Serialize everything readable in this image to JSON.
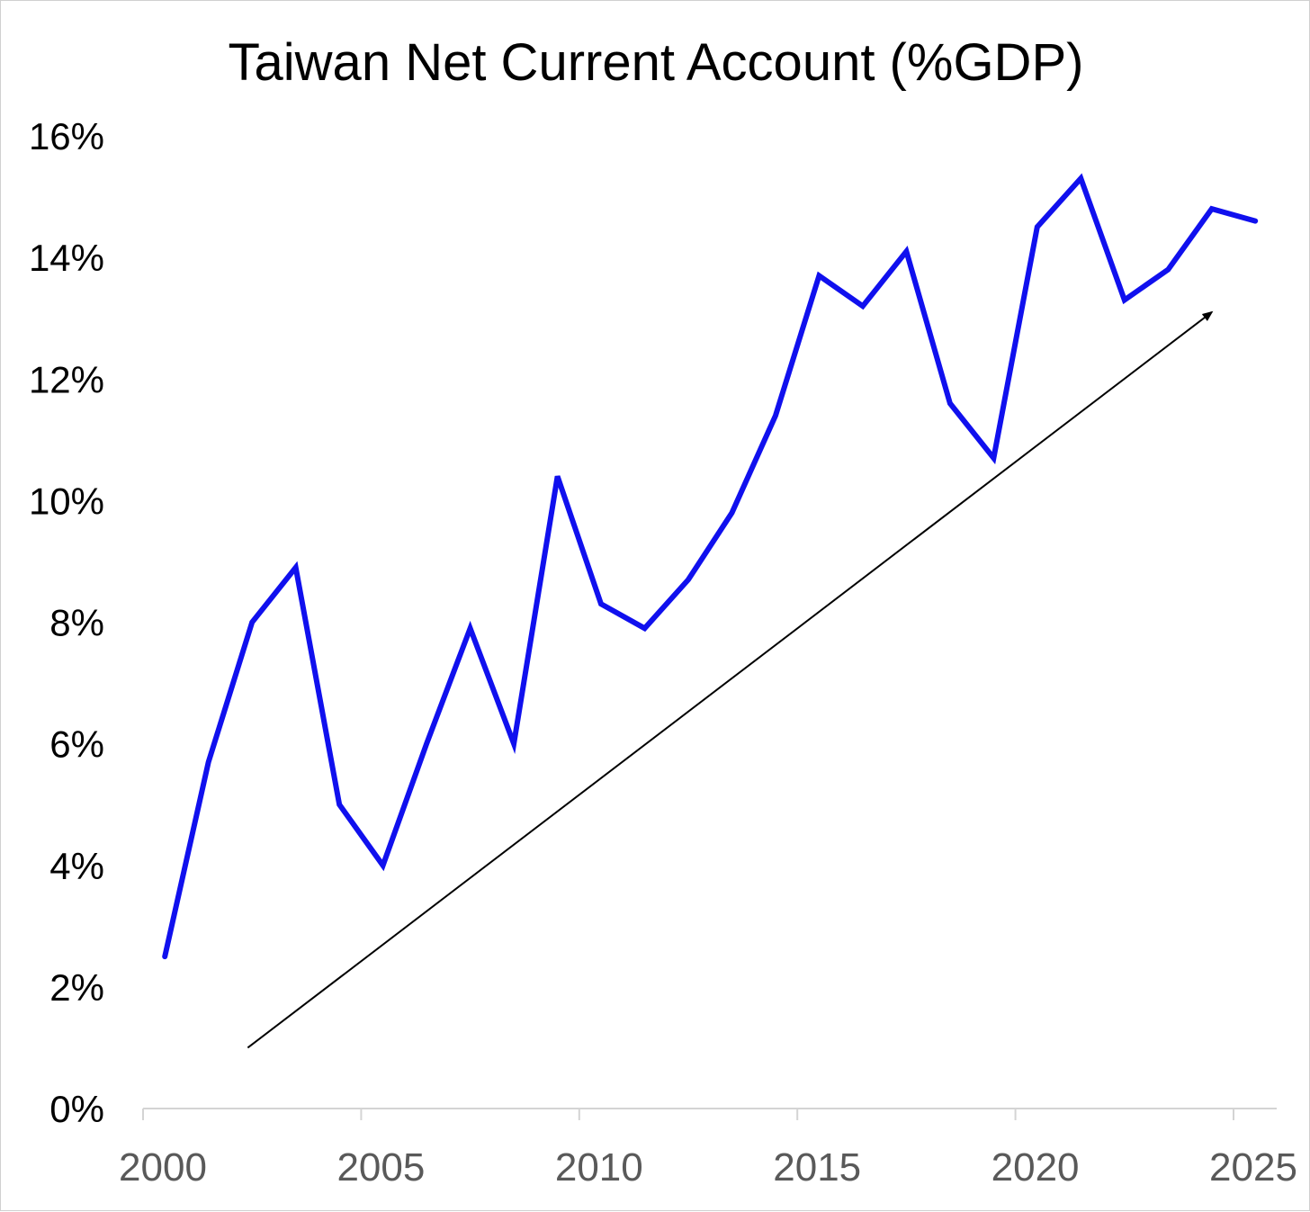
{
  "chart_data": {
    "type": "line",
    "title": "Taiwan Net Current Account (%GDP)",
    "xlabel": "",
    "ylabel": "",
    "xlim": [
      2000,
      2025
    ],
    "ylim": [
      0,
      16
    ],
    "x_ticks": [
      2000,
      2005,
      2010,
      2015,
      2020,
      2025
    ],
    "x_tick_labels": [
      "2000",
      "2005",
      "2010",
      "2015",
      "2020",
      "2025"
    ],
    "y_ticks": [
      0,
      2,
      4,
      6,
      8,
      10,
      12,
      14,
      16
    ],
    "y_tick_labels": [
      "0%",
      "2%",
      "4%",
      "6%",
      "8%",
      "10%",
      "12%",
      "14%",
      "16%"
    ],
    "grid": false,
    "legend": "none",
    "series": [
      {
        "color": "#1010ee",
        "x": [
          2000.5,
          2001.5,
          2002.5,
          2003.5,
          2004.5,
          2005.5,
          2006.5,
          2007.5,
          2008.5,
          2009.5,
          2010.5,
          2011.5,
          2012.5,
          2013.5,
          2014.5,
          2015.5,
          2016.5,
          2017.5,
          2018.5,
          2019.5,
          2020.5,
          2021.5,
          2022.5,
          2023.5,
          2024.5,
          2025.5
        ],
        "values": [
          2.5,
          5.7,
          8.0,
          8.9,
          5.0,
          4.0,
          6.0,
          7.9,
          6.0,
          10.4,
          8.3,
          7.9,
          8.7,
          9.8,
          11.4,
          13.7,
          13.2,
          14.1,
          11.6,
          10.7,
          14.5,
          15.3,
          13.3,
          13.8,
          14.8,
          14.6
        ]
      }
    ],
    "annotations": [
      {
        "type": "arrow",
        "color": "#000000",
        "x": [
          2002.4,
          2024.5
        ],
        "y": [
          1.0,
          13.1
        ]
      }
    ]
  }
}
